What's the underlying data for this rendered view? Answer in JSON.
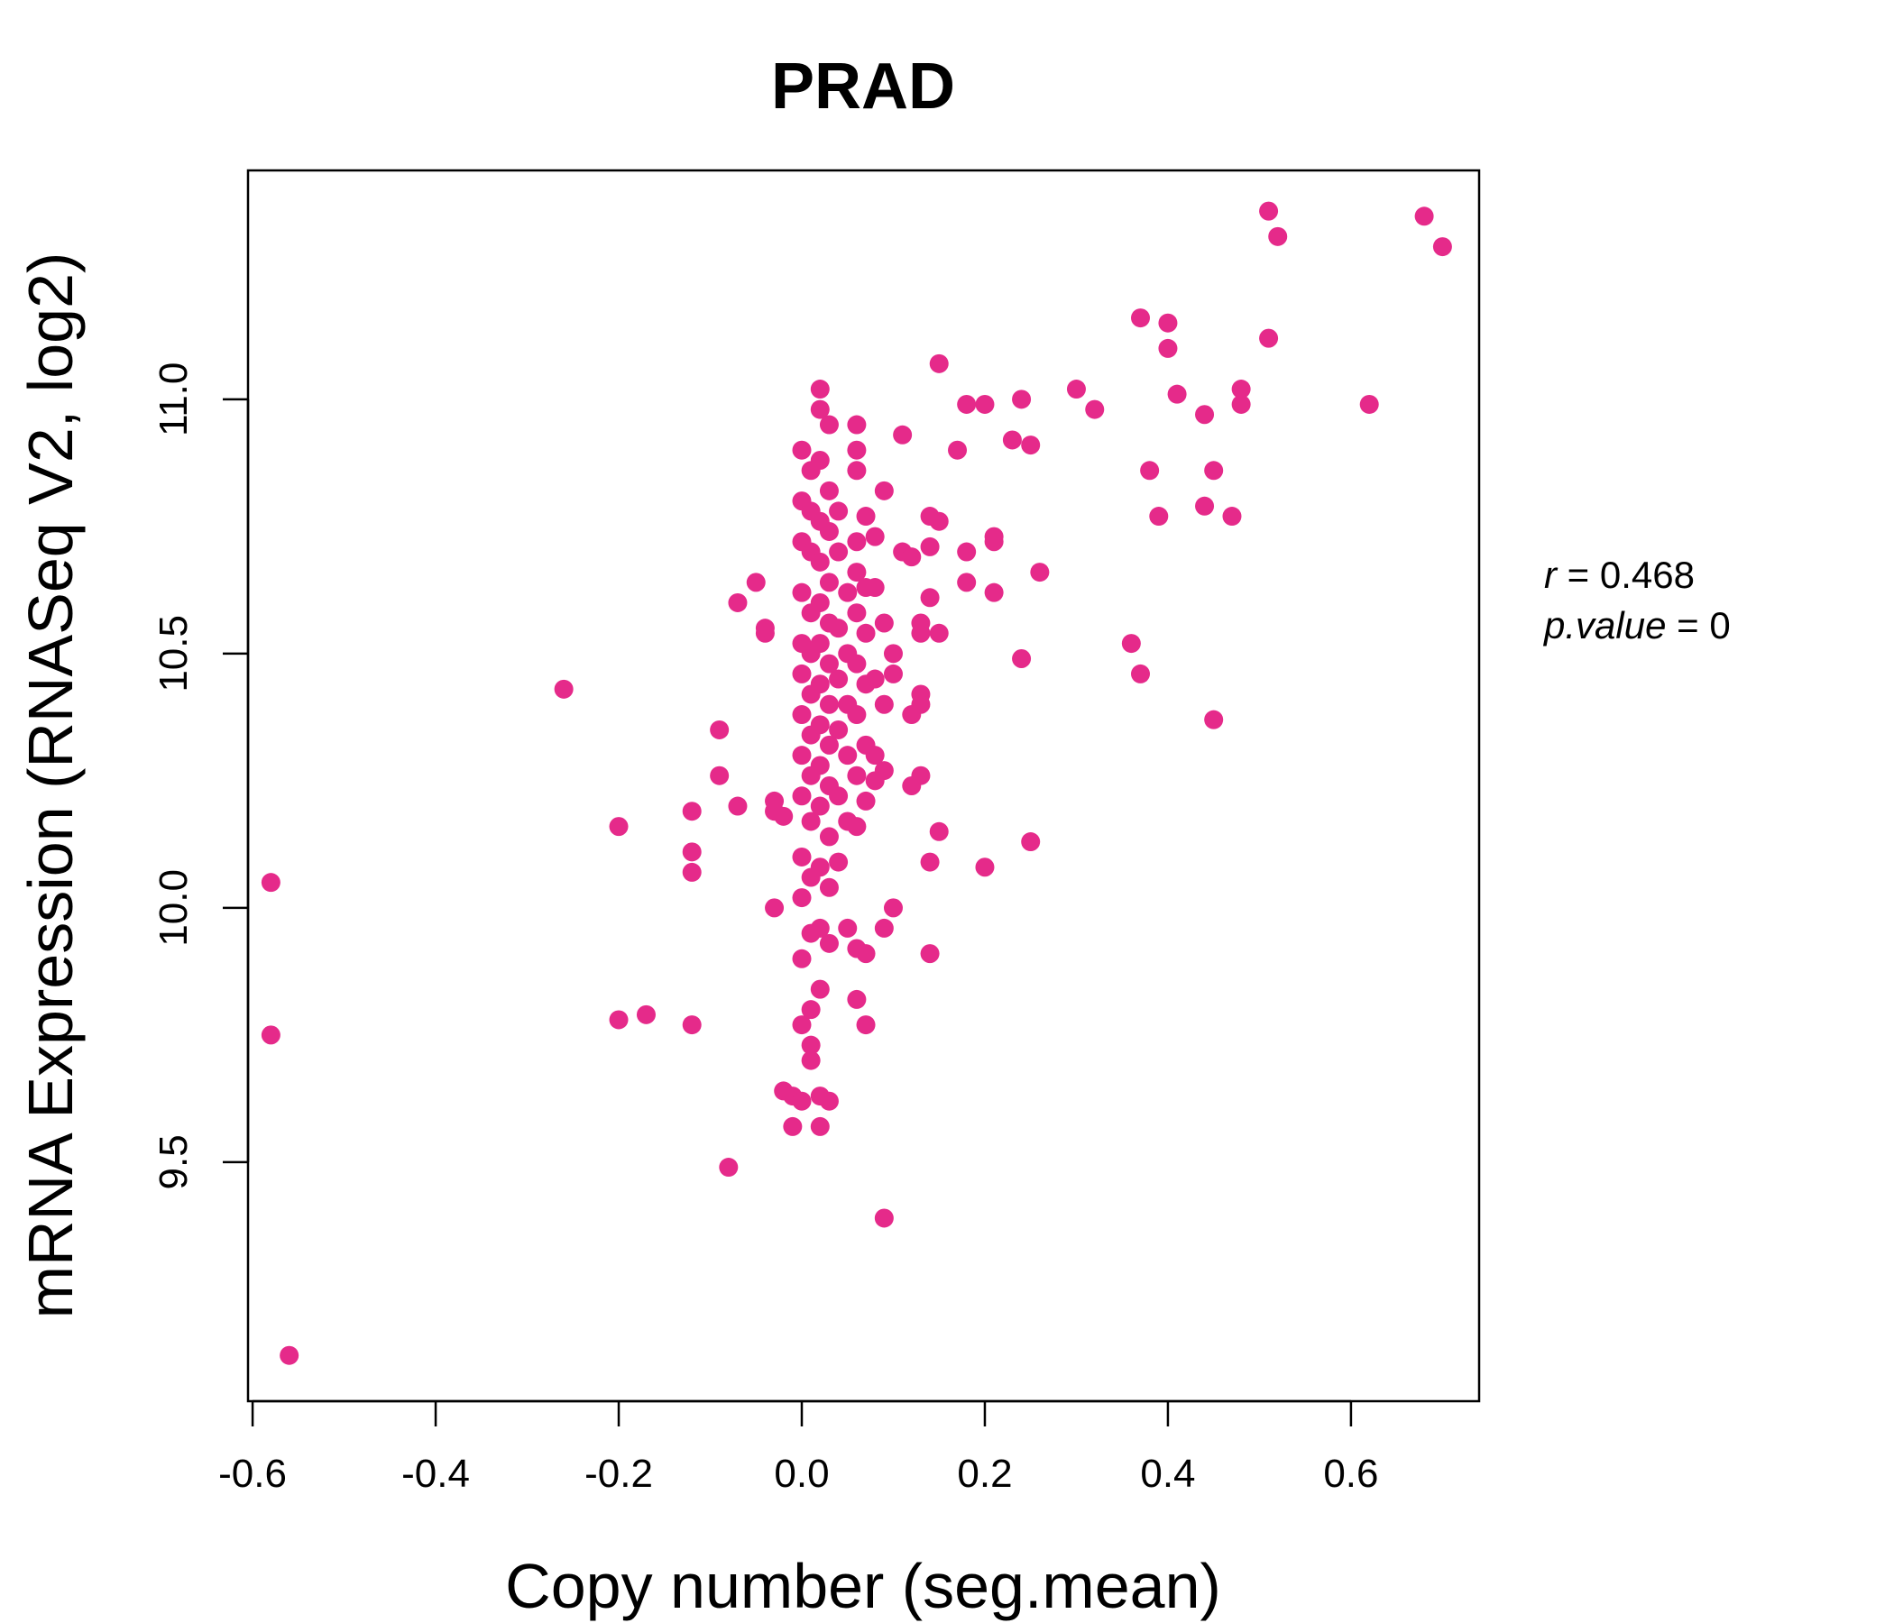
{
  "colors": {
    "accent": "#E52A8A",
    "axis": "#000000",
    "background": "#ffffff"
  },
  "chart_data": {
    "type": "scatter",
    "title": "PRAD",
    "xlabel": "Copy number (seg.mean)",
    "ylabel": "mRNA Expression (RNASeq V2, log2)",
    "xlim": [
      -0.605,
      0.74
    ],
    "ylim": [
      9.03,
      11.45
    ],
    "x_ticks": [
      -0.6,
      -0.4,
      -0.2,
      0.0,
      0.2,
      0.4,
      0.6
    ],
    "x_tick_labels": [
      "-0.6",
      "-0.4",
      "-0.2",
      "0.0",
      "0.2",
      "0.4",
      "0.6"
    ],
    "y_ticks": [
      9.5,
      10.0,
      10.5,
      11.0
    ],
    "y_tick_labels": [
      "9.5",
      "10.0",
      "10.5",
      "11.0"
    ],
    "grid": false,
    "legend": "none",
    "annotations": {
      "r_label": "r",
      "r_value": "0.468",
      "p_label": "p.value",
      "p_value": "0"
    },
    "points": [
      [
        -0.58,
        10.05
      ],
      [
        -0.58,
        9.75
      ],
      [
        -0.56,
        9.12
      ],
      [
        -0.26,
        10.43
      ],
      [
        -0.2,
        10.16
      ],
      [
        -0.2,
        9.78
      ],
      [
        -0.17,
        9.79
      ],
      [
        -0.12,
        10.19
      ],
      [
        -0.12,
        10.11
      ],
      [
        -0.12,
        10.07
      ],
      [
        -0.12,
        9.77
      ],
      [
        -0.09,
        10.35
      ],
      [
        -0.09,
        10.26
      ],
      [
        -0.08,
        9.49
      ],
      [
        -0.07,
        10.6
      ],
      [
        -0.07,
        10.2
      ],
      [
        -0.05,
        10.64
      ],
      [
        -0.04,
        10.55
      ],
      [
        -0.04,
        10.54
      ],
      [
        -0.03,
        10.21
      ],
      [
        -0.03,
        10.19
      ],
      [
        -0.02,
        10.18
      ],
      [
        -0.03,
        10.0
      ],
      [
        -0.02,
        9.64
      ],
      [
        -0.01,
        9.63
      ],
      [
        0.0,
        9.62
      ],
      [
        -0.01,
        9.57
      ],
      [
        0.0,
        10.9
      ],
      [
        0.0,
        10.8
      ],
      [
        0.01,
        10.86
      ],
      [
        0.01,
        10.78
      ],
      [
        0.0,
        10.72
      ],
      [
        0.01,
        10.7
      ],
      [
        0.0,
        10.62
      ],
      [
        0.01,
        10.58
      ],
      [
        0.0,
        10.52
      ],
      [
        0.01,
        10.5
      ],
      [
        0.0,
        10.46
      ],
      [
        0.01,
        10.42
      ],
      [
        0.0,
        10.38
      ],
      [
        0.01,
        10.34
      ],
      [
        0.0,
        10.3
      ],
      [
        0.01,
        10.26
      ],
      [
        0.0,
        10.22
      ],
      [
        0.01,
        10.17
      ],
      [
        0.0,
        10.1
      ],
      [
        0.01,
        10.06
      ],
      [
        0.0,
        10.02
      ],
      [
        0.01,
        9.95
      ],
      [
        0.0,
        9.9
      ],
      [
        0.02,
        9.84
      ],
      [
        0.01,
        9.8
      ],
      [
        0.0,
        9.77
      ],
      [
        0.01,
        9.73
      ],
      [
        0.01,
        9.7
      ],
      [
        0.02,
        11.02
      ],
      [
        0.02,
        10.98
      ],
      [
        0.03,
        10.95
      ],
      [
        0.02,
        10.88
      ],
      [
        0.03,
        10.82
      ],
      [
        0.02,
        10.76
      ],
      [
        0.03,
        10.74
      ],
      [
        0.02,
        10.68
      ],
      [
        0.03,
        10.64
      ],
      [
        0.02,
        10.6
      ],
      [
        0.03,
        10.56
      ],
      [
        0.02,
        10.52
      ],
      [
        0.03,
        10.48
      ],
      [
        0.02,
        10.44
      ],
      [
        0.03,
        10.4
      ],
      [
        0.02,
        10.36
      ],
      [
        0.03,
        10.32
      ],
      [
        0.02,
        10.28
      ],
      [
        0.03,
        10.24
      ],
      [
        0.02,
        10.2
      ],
      [
        0.03,
        10.14
      ],
      [
        0.02,
        10.08
      ],
      [
        0.03,
        10.04
      ],
      [
        0.02,
        9.96
      ],
      [
        0.03,
        9.93
      ],
      [
        0.02,
        9.63
      ],
      [
        0.03,
        9.62
      ],
      [
        0.02,
        9.57
      ],
      [
        0.04,
        10.78
      ],
      [
        0.04,
        10.7
      ],
      [
        0.05,
        10.62
      ],
      [
        0.04,
        10.55
      ],
      [
        0.05,
        10.5
      ],
      [
        0.04,
        10.45
      ],
      [
        0.05,
        10.4
      ],
      [
        0.04,
        10.35
      ],
      [
        0.05,
        10.3
      ],
      [
        0.04,
        10.22
      ],
      [
        0.05,
        10.17
      ],
      [
        0.04,
        10.09
      ],
      [
        0.06,
        10.95
      ],
      [
        0.06,
        10.9
      ],
      [
        0.06,
        10.86
      ],
      [
        0.07,
        10.77
      ],
      [
        0.06,
        10.72
      ],
      [
        0.06,
        10.66
      ],
      [
        0.07,
        10.63
      ],
      [
        0.06,
        10.58
      ],
      [
        0.07,
        10.54
      ],
      [
        0.06,
        10.48
      ],
      [
        0.07,
        10.44
      ],
      [
        0.06,
        10.38
      ],
      [
        0.07,
        10.32
      ],
      [
        0.06,
        10.26
      ],
      [
        0.07,
        10.21
      ],
      [
        0.06,
        10.16
      ],
      [
        0.05,
        9.96
      ],
      [
        0.06,
        9.92
      ],
      [
        0.07,
        9.91
      ],
      [
        0.06,
        9.82
      ],
      [
        0.07,
        9.77
      ],
      [
        0.08,
        10.73
      ],
      [
        0.08,
        10.63
      ],
      [
        0.09,
        10.56
      ],
      [
        0.08,
        10.45
      ],
      [
        0.09,
        10.4
      ],
      [
        0.08,
        10.3
      ],
      [
        0.09,
        10.27
      ],
      [
        0.08,
        10.25
      ],
      [
        0.09,
        10.82
      ],
      [
        0.09,
        9.96
      ],
      [
        0.09,
        9.39
      ],
      [
        0.1,
        10.5
      ],
      [
        0.1,
        10.46
      ],
      [
        0.1,
        10.0
      ],
      [
        0.11,
        10.93
      ],
      [
        0.11,
        10.7
      ],
      [
        0.12,
        10.38
      ],
      [
        0.12,
        10.24
      ],
      [
        0.12,
        10.69
      ],
      [
        0.13,
        10.56
      ],
      [
        0.13,
        10.54
      ],
      [
        0.13,
        10.42
      ],
      [
        0.13,
        10.4
      ],
      [
        0.13,
        10.26
      ],
      [
        0.14,
        10.09
      ],
      [
        0.14,
        9.91
      ],
      [
        0.14,
        10.71
      ],
      [
        0.14,
        10.77
      ],
      [
        0.15,
        10.76
      ],
      [
        0.14,
        10.61
      ],
      [
        0.15,
        10.54
      ],
      [
        0.15,
        10.15
      ],
      [
        0.15,
        11.07
      ],
      [
        0.17,
        10.9
      ],
      [
        0.18,
        10.99
      ],
      [
        0.18,
        10.7
      ],
      [
        0.18,
        10.64
      ],
      [
        0.2,
        10.08
      ],
      [
        0.2,
        10.99
      ],
      [
        0.21,
        10.73
      ],
      [
        0.21,
        10.72
      ],
      [
        0.21,
        10.62
      ],
      [
        0.23,
        10.92
      ],
      [
        0.24,
        10.49
      ],
      [
        0.24,
        11.0
      ],
      [
        0.25,
        10.13
      ],
      [
        0.25,
        10.91
      ],
      [
        0.26,
        10.66
      ],
      [
        0.3,
        11.02
      ],
      [
        0.32,
        10.98
      ],
      [
        0.36,
        10.52
      ],
      [
        0.37,
        11.16
      ],
      [
        0.37,
        10.46
      ],
      [
        0.38,
        10.86
      ],
      [
        0.39,
        10.77
      ],
      [
        0.4,
        11.15
      ],
      [
        0.4,
        11.1
      ],
      [
        0.41,
        11.01
      ],
      [
        0.44,
        10.97
      ],
      [
        0.44,
        10.79
      ],
      [
        0.45,
        10.37
      ],
      [
        0.45,
        10.86
      ],
      [
        0.47,
        10.77
      ],
      [
        0.48,
        11.02
      ],
      [
        0.48,
        10.99
      ],
      [
        0.51,
        11.37
      ],
      [
        0.51,
        11.12
      ],
      [
        0.52,
        11.32
      ],
      [
        0.62,
        10.99
      ],
      [
        0.68,
        11.36
      ],
      [
        0.7,
        11.3
      ]
    ]
  }
}
